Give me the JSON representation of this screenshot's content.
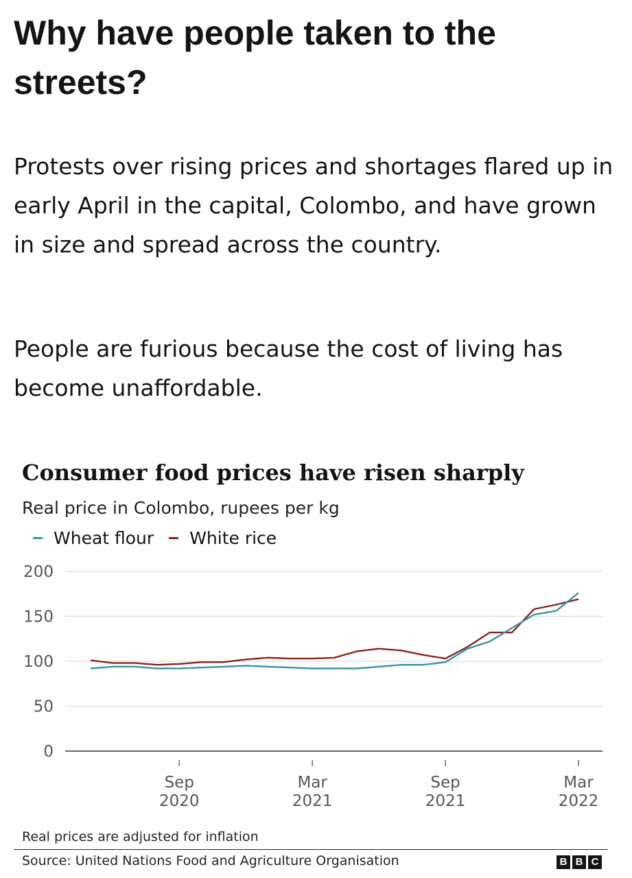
{
  "headline": "Why have people taken to the streets?",
  "paragraphs": [
    "Protests over rising prices and shortages flared up in early April in the capital, Colombo, and have grown in size and spread across the country.",
    "People are furious because the cost of living has become unaffordable."
  ],
  "chart_data": {
    "type": "line",
    "title": "Consumer food prices have risen sharply",
    "subtitle": "Real price in Colombo, rupees per kg",
    "categories": [
      null,
      null,
      null,
      null,
      "Sep 2020",
      null,
      null,
      null,
      null,
      null,
      "Mar 2021",
      null,
      null,
      null,
      null,
      null,
      "Sep 2021",
      null,
      null,
      null,
      null,
      null,
      "Mar 2022"
    ],
    "series": [
      {
        "name": "Wheat flour",
        "color": "#3a93a8",
        "values": [
          92,
          94,
          94,
          92,
          92,
          93,
          94,
          95,
          94,
          93,
          92,
          92,
          92,
          94,
          96,
          96,
          99,
          114,
          122,
          137,
          152,
          156,
          176
        ]
      },
      {
        "name": "White rice",
        "color": "#8b2219",
        "values": [
          101,
          98,
          98,
          96,
          97,
          99,
          99,
          102,
          104,
          103,
          103,
          104,
          111,
          114,
          112,
          107,
          103,
          116,
          132,
          132,
          158,
          163,
          169
        ]
      }
    ],
    "ylim": [
      0,
      200
    ],
    "yticks": [
      0,
      50,
      100,
      150,
      200
    ],
    "grid": true,
    "note": "Real prices are adjusted for inflation",
    "source": "Source: United Nations Food and Agriculture Organisation"
  },
  "logo": [
    "B",
    "B",
    "C"
  ]
}
